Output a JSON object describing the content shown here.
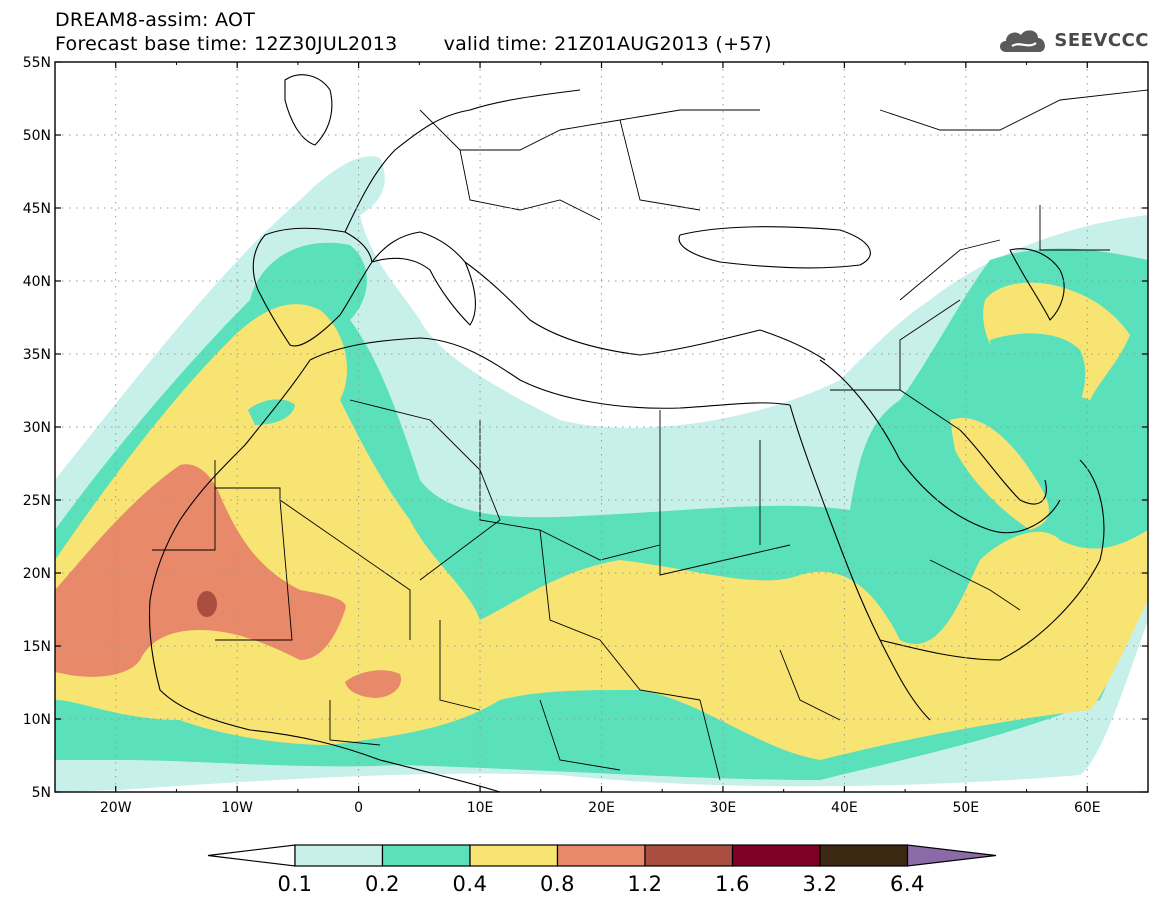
{
  "header": {
    "title": "DREAM8-assim: AOT",
    "base_time": "Forecast base time: 12Z30JUL2013",
    "valid_time": "valid time: 21Z01AUG2013 (+57)"
  },
  "logo": {
    "text": "SEEVCCC",
    "icon": "cloud-icon"
  },
  "map": {
    "lon_range": [
      -25,
      65
    ],
    "lat_range": [
      5,
      55
    ],
    "lon_ticks": [
      "20W",
      "10W",
      "0",
      "10E",
      "20E",
      "30E",
      "40E",
      "50E",
      "60E"
    ],
    "lat_ticks": [
      "5N",
      "10N",
      "15N",
      "20N",
      "25N",
      "30N",
      "35N",
      "40N",
      "45N",
      "50N",
      "55N"
    ],
    "grid": "dotted"
  },
  "legend": {
    "labels": [
      "0.1",
      "0.2",
      "0.4",
      "0.8",
      "1.2",
      "1.6",
      "3.2",
      "6.4"
    ],
    "colors": [
      "#ffffff",
      "#c8f0ea",
      "#5ae0bb",
      "#f7e473",
      "#e8896a",
      "#ab4e42",
      "#7e0022",
      "#3d2813",
      "#8b6aa8"
    ]
  }
}
